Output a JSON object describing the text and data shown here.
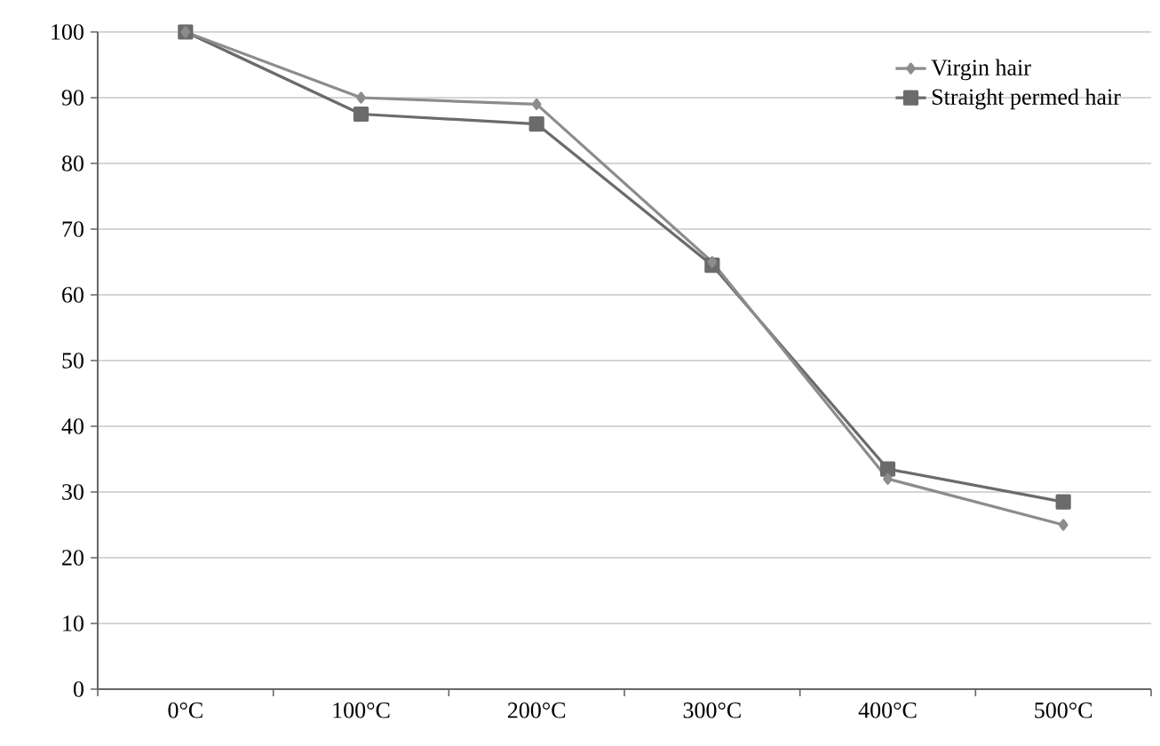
{
  "chart_data": {
    "type": "line",
    "categories": [
      "0°C",
      "100°C",
      "200°C",
      "300°C",
      "400°C",
      "500°C"
    ],
    "series": [
      {
        "name": "Virgin hair",
        "color": "#8c8c8c",
        "marker": "diamond",
        "values": [
          100,
          90,
          89,
          65,
          32,
          25
        ]
      },
      {
        "name": "Straight permed hair",
        "color": "#6b6b6b",
        "marker": "square",
        "values": [
          100,
          87.5,
          86,
          64.5,
          33.5,
          28.5
        ]
      }
    ],
    "ylim": [
      0,
      100
    ],
    "yticks": [
      0,
      10,
      20,
      30,
      40,
      50,
      60,
      70,
      80,
      90,
      100
    ],
    "grid": "y",
    "legend": "top right",
    "line_style": "solid"
  }
}
